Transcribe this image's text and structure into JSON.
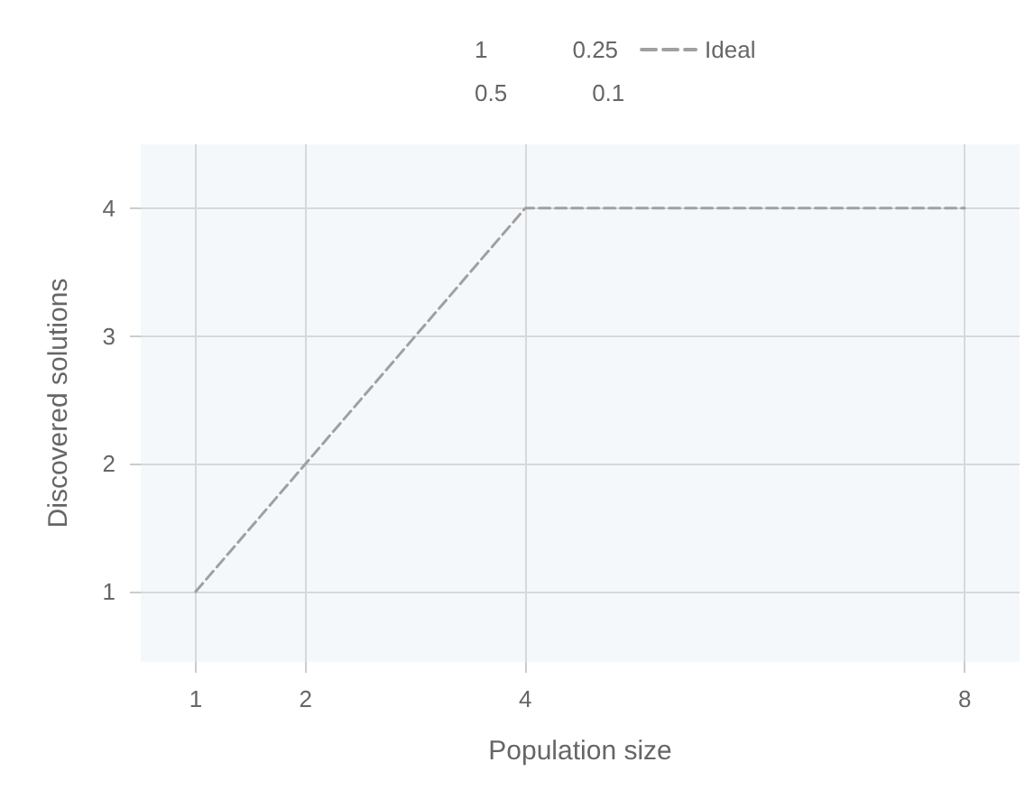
{
  "chart_data": {
    "type": "line",
    "xlabel": "Population size",
    "ylabel": "Discovered solutions",
    "series": [
      {
        "name": "1",
        "values": [
          null,
          null,
          null,
          null
        ]
      },
      {
        "name": "0.5",
        "values": [
          null,
          null,
          null,
          null
        ]
      },
      {
        "name": "0.25",
        "values": [
          null,
          null,
          null,
          null
        ]
      },
      {
        "name": "0.1",
        "values": [
          null,
          null,
          null,
          null
        ]
      },
      {
        "name": "Ideal",
        "color": "#a0a0a0",
        "line_style": "dashed",
        "values": [
          1,
          2,
          4,
          4
        ]
      }
    ],
    "x": [
      1,
      2,
      4,
      8
    ],
    "xlim": [
      0.5,
      8.5
    ],
    "ylim": [
      0.45,
      4.5
    ],
    "xticks": [
      1,
      2,
      4,
      8
    ],
    "yticks": [
      1,
      2,
      3,
      4
    ],
    "grid": true,
    "legend": "top",
    "marker": "none"
  }
}
